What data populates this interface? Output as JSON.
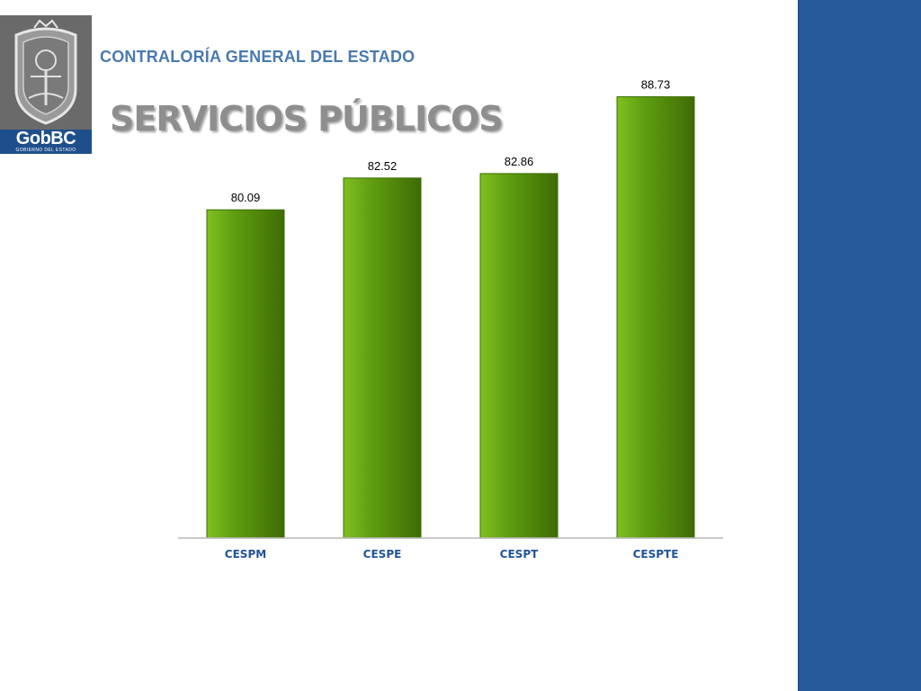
{
  "header": {
    "organization": "CONTRALORÍA GENERAL DEL ESTADO",
    "title": "SERVICIOS PÚBLICOS"
  },
  "logo": {
    "brand": "GobBC",
    "subtitle": "GOBIERNO DEL ESTADO",
    "seal_icon": "state-seal-icon"
  },
  "colors": {
    "bar": "#5f9e10",
    "bar_dark": "#3e6c06",
    "bar_light": "#80c020",
    "category_label": "#1f5499",
    "side_bar": "#245b9a"
  },
  "chart_data": {
    "type": "bar",
    "categories": [
      "CESPM",
      "CESPE",
      "CESPT",
      "CESPTE"
    ],
    "values": [
      80.09,
      82.52,
      82.86,
      88.73
    ],
    "data_labels": [
      "80.09",
      "82.52",
      "82.86",
      "88.73"
    ],
    "title": "",
    "xlabel": "",
    "ylabel": "",
    "ylim": [
      55,
      92
    ],
    "grid": false,
    "legend": "none"
  }
}
